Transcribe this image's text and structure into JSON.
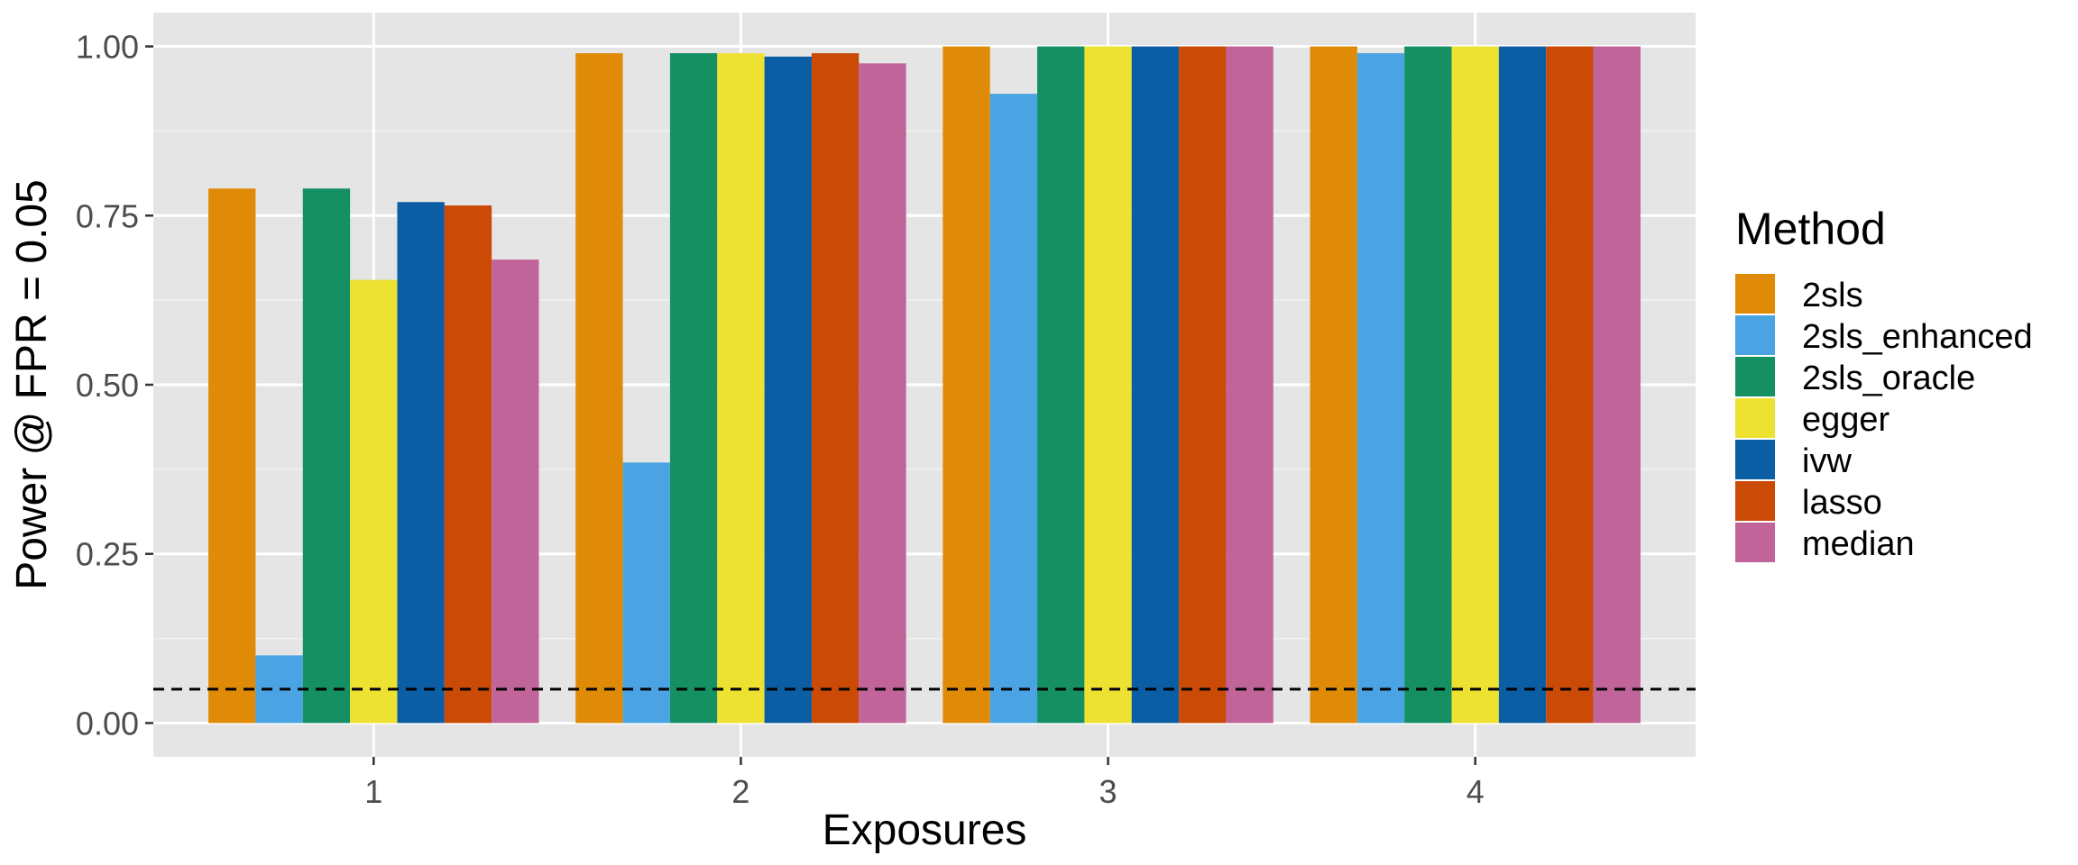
{
  "chart_data": {
    "type": "bar",
    "xlabel": "Exposures",
    "ylabel": "Power @ FPR = 0.05",
    "categories": [
      "1",
      "2",
      "3",
      "4"
    ],
    "ylim": [
      -0.05,
      1.05
    ],
    "yticks": [
      0.0,
      0.25,
      0.5,
      0.75,
      1.0
    ],
    "ytick_labels": [
      "0.00",
      "0.25",
      "0.50",
      "0.75",
      "1.00"
    ],
    "reference_line": {
      "y": 0.05,
      "style": "dashed",
      "color": "#000000"
    },
    "grid": true,
    "legend": {
      "title": "Method",
      "position": "right"
    },
    "series": [
      {
        "name": "2sls",
        "color": "#E08B07",
        "values": [
          0.79,
          0.99,
          1.0,
          1.0
        ]
      },
      {
        "name": "2sls_enhanced",
        "color": "#4AA3E3",
        "values": [
          0.1,
          0.385,
          0.93,
          0.99
        ]
      },
      {
        "name": "2sls_oracle",
        "color": "#149062",
        "values": [
          0.79,
          0.99,
          1.0,
          1.0
        ]
      },
      {
        "name": "egger",
        "color": "#EDE232",
        "values": [
          0.655,
          0.99,
          1.0,
          1.0
        ]
      },
      {
        "name": "ivw",
        "color": "#0B5EA3",
        "values": [
          0.77,
          0.985,
          1.0,
          1.0
        ]
      },
      {
        "name": "lasso",
        "color": "#CB4A06",
        "values": [
          0.765,
          0.99,
          1.0,
          1.0
        ]
      },
      {
        "name": "median",
        "color": "#C16499",
        "values": [
          0.685,
          0.975,
          1.0,
          1.0
        ]
      }
    ]
  }
}
